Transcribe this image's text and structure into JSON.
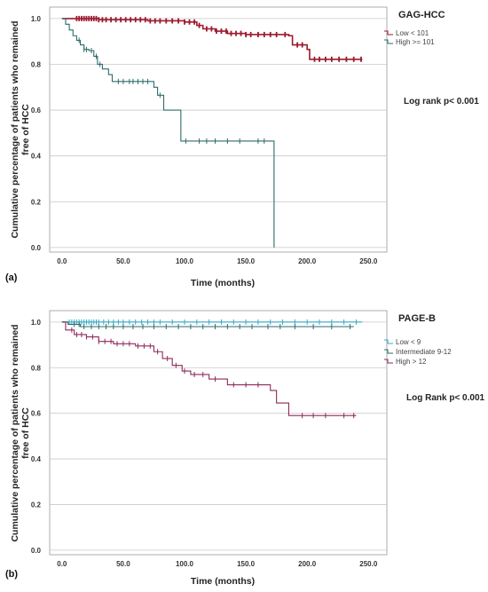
{
  "chart_data": [
    {
      "type": "line",
      "panel_label": "(a)",
      "legend_title": "GAG-HCC",
      "annotation": "Log rank p< 0.001",
      "xlabel": "Time (months)",
      "ylabel_lines": [
        "Cumulative percentage of patients who remained",
        "free of HCC"
      ],
      "xticks": [
        "0.0",
        "50.0",
        "100.0",
        "150.0",
        "200.0",
        "250.0"
      ],
      "yticks": [
        "0.0",
        "0.2",
        "0.4",
        "0.6",
        "0.8",
        "1.0"
      ],
      "xlim": [
        -10,
        265
      ],
      "ylim": [
        -0.02,
        1.05
      ],
      "legend_position": "top-right",
      "series": [
        {
          "name": "Low < 101",
          "color": "#9b1b2e",
          "steps": [
            [
              0,
              1.0
            ],
            [
              30,
              0.995
            ],
            [
              70,
              0.99
            ],
            [
              100,
              0.985
            ],
            [
              110,
              0.97
            ],
            [
              115,
              0.955
            ],
            [
              125,
              0.945
            ],
            [
              135,
              0.935
            ],
            [
              150,
              0.93
            ],
            [
              185,
              0.925
            ],
            [
              188,
              0.885
            ],
            [
              200,
              0.865
            ],
            [
              202,
              0.822
            ],
            [
              245,
              0.822
            ]
          ],
          "censors": [
            12,
            14,
            16,
            18,
            20,
            22,
            24,
            26,
            28,
            30,
            33,
            36,
            40,
            44,
            48,
            52,
            56,
            60,
            64,
            68,
            72,
            76,
            80,
            85,
            90,
            95,
            100,
            104,
            108,
            112,
            118,
            122,
            126,
            130,
            134,
            138,
            142,
            146,
            150,
            154,
            160,
            165,
            170,
            175,
            182,
            192,
            196,
            206,
            210,
            215,
            220,
            226,
            232,
            238,
            244
          ]
        },
        {
          "name": "High >= 101",
          "color": "#2e6b6b",
          "steps": [
            [
              0,
              1.0
            ],
            [
              3,
              0.975
            ],
            [
              6,
              0.95
            ],
            [
              9,
              0.925
            ],
            [
              12,
              0.905
            ],
            [
              15,
              0.885
            ],
            [
              18,
              0.865
            ],
            [
              22,
              0.86
            ],
            [
              26,
              0.835
            ],
            [
              29,
              0.8
            ],
            [
              33,
              0.78
            ],
            [
              38,
              0.755
            ],
            [
              41,
              0.725
            ],
            [
              75,
              0.7
            ],
            [
              78,
              0.665
            ],
            [
              83,
              0.6
            ],
            [
              97,
              0.465
            ],
            [
              173,
              0.0
            ]
          ],
          "censors": [
            14,
            18,
            20,
            24,
            28,
            31,
            46,
            50,
            55,
            58,
            62,
            66,
            70,
            80,
            101,
            112,
            118,
            125,
            135,
            145,
            160,
            165
          ]
        }
      ]
    },
    {
      "type": "line",
      "panel_label": "(b)",
      "legend_title": "PAGE-B",
      "annotation": "Log Rank p< 0.001",
      "xlabel": "Time (months)",
      "ylabel_lines": [
        "Cumulative percentage of patients who remained",
        "free of HCC"
      ],
      "xticks": [
        "0.0",
        "50.0",
        "100.0",
        "150.0",
        "200.0",
        "250.0"
      ],
      "yticks": [
        "0.0",
        "0.2",
        "0.4",
        "0.6",
        "0.8",
        "1.0"
      ],
      "xlim": [
        -10,
        265
      ],
      "ylim": [
        -0.02,
        1.05
      ],
      "legend_position": "top-right",
      "series": [
        {
          "name": "Low < 9",
          "color": "#35aac8",
          "steps": [
            [
              0,
              1.0
            ],
            [
              245,
              1.0
            ]
          ],
          "censors": [
            6,
            8,
            10,
            12,
            14,
            16,
            18,
            20,
            22,
            24,
            26,
            28,
            30,
            34,
            38,
            42,
            46,
            50,
            55,
            60,
            65,
            70,
            75,
            80,
            90,
            100,
            110,
            120,
            130,
            140,
            150,
            160,
            170,
            180,
            190,
            200,
            210,
            220,
            230,
            240
          ]
        },
        {
          "name": "Intermediate 9-12",
          "color": "#2e6b6b",
          "steps": [
            [
              0,
              1.0
            ],
            [
              5,
              0.99
            ],
            [
              15,
              0.98
            ],
            [
              238,
              0.98
            ]
          ],
          "censors": [
            10,
            14,
            18,
            24,
            30,
            36,
            42,
            50,
            58,
            66,
            75,
            85,
            95,
            105,
            115,
            125,
            135,
            145,
            155,
            168,
            178,
            190,
            205,
            220,
            235
          ]
        },
        {
          "name": "High > 12",
          "color": "#8e2a5a",
          "steps": [
            [
              0,
              1.0
            ],
            [
              3,
              0.965
            ],
            [
              10,
              0.945
            ],
            [
              20,
              0.935
            ],
            [
              30,
              0.915
            ],
            [
              42,
              0.905
            ],
            [
              60,
              0.895
            ],
            [
              75,
              0.87
            ],
            [
              82,
              0.84
            ],
            [
              90,
              0.81
            ],
            [
              98,
              0.785
            ],
            [
              105,
              0.77
            ],
            [
              120,
              0.75
            ],
            [
              135,
              0.725
            ],
            [
              170,
              0.7
            ],
            [
              175,
              0.645
            ],
            [
              185,
              0.59
            ],
            [
              240,
              0.59
            ]
          ],
          "censors": [
            8,
            12,
            16,
            20,
            25,
            30,
            35,
            40,
            45,
            50,
            55,
            62,
            67,
            72,
            78,
            86,
            93,
            100,
            108,
            115,
            125,
            140,
            150,
            160,
            196,
            205,
            215,
            230,
            238
          ]
        }
      ]
    }
  ]
}
